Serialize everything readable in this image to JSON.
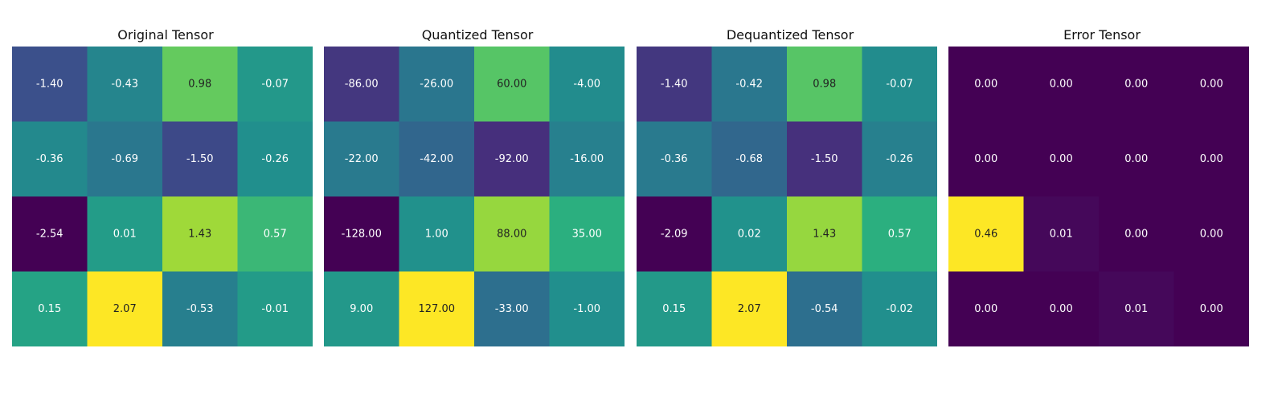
{
  "chart_data": [
    {
      "type": "heatmap",
      "title": "Original Tensor",
      "colormap": "viridis",
      "value_format": "2 decimals",
      "rows": [
        [
          -1.4,
          -0.43,
          0.98,
          -0.07
        ],
        [
          -0.36,
          -0.69,
          -1.5,
          -0.26
        ],
        [
          -2.54,
          0.01,
          1.43,
          0.57
        ],
        [
          0.15,
          2.07,
          -0.53,
          -0.01
        ]
      ]
    },
    {
      "type": "heatmap",
      "title": "Quantized Tensor",
      "colormap": "viridis",
      "value_format": "2 decimals",
      "rows": [
        [
          -86.0,
          -26.0,
          60.0,
          -4.0
        ],
        [
          -22.0,
          -42.0,
          -92.0,
          -16.0
        ],
        [
          -128.0,
          1.0,
          88.0,
          35.0
        ],
        [
          9.0,
          127.0,
          -33.0,
          -1.0
        ]
      ]
    },
    {
      "type": "heatmap",
      "title": "Dequantized Tensor",
      "colormap": "viridis",
      "value_format": "2 decimals",
      "rows": [
        [
          -1.4,
          -0.42,
          0.98,
          -0.07
        ],
        [
          -0.36,
          -0.68,
          -1.5,
          -0.26
        ],
        [
          -2.09,
          0.02,
          1.43,
          0.57
        ],
        [
          0.15,
          2.07,
          -0.54,
          -0.02
        ]
      ]
    },
    {
      "type": "heatmap",
      "title": "Error Tensor",
      "colormap": "viridis",
      "value_format": "2 decimals",
      "rows": [
        [
          0.0,
          0.0,
          0.0,
          0.0
        ],
        [
          0.0,
          0.0,
          0.0,
          0.0
        ],
        [
          0.46,
          0.01,
          0.0,
          0.0
        ],
        [
          0.0,
          0.0,
          0.01,
          0.0
        ]
      ]
    }
  ]
}
